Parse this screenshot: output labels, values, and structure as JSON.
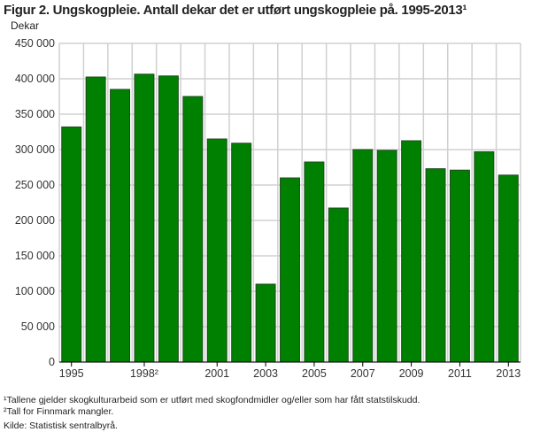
{
  "chart_data": {
    "type": "bar",
    "title": "Figur 2. Ungskogpleie. Antall dekar det er utført ungskogpleie på. 1995-2013¹",
    "ylabel": "Dekar",
    "xlabel": "",
    "categories": [
      "1995",
      "1996",
      "1997",
      "1998",
      "1999",
      "2000",
      "2001",
      "2002",
      "2003",
      "2004",
      "2005",
      "2006",
      "2007",
      "2008",
      "2009",
      "2010",
      "2011",
      "2012",
      "2013"
    ],
    "values": [
      332000,
      402500,
      385000,
      406500,
      404000,
      375000,
      315000,
      309000,
      110000,
      260000,
      282500,
      217500,
      300000,
      299000,
      312500,
      273000,
      271000,
      297000,
      264000
    ],
    "x_tick_labels": [
      {
        "index": 0,
        "label": "1995"
      },
      {
        "index": 3,
        "label": "1998²"
      },
      {
        "index": 6,
        "label": "2001"
      },
      {
        "index": 8,
        "label": "2003"
      },
      {
        "index": 10,
        "label": "2005"
      },
      {
        "index": 12,
        "label": "2007"
      },
      {
        "index": 14,
        "label": "2009"
      },
      {
        "index": 16,
        "label": "2011"
      },
      {
        "index": 18,
        "label": "2013"
      }
    ],
    "y_ticks": [
      0,
      50000,
      100000,
      150000,
      200000,
      250000,
      300000,
      350000,
      400000,
      450000
    ],
    "y_tick_labels": [
      "0",
      "50 000",
      "100 000",
      "150 000",
      "200 000",
      "250 000",
      "300 000",
      "350 000",
      "400 000",
      "450 000"
    ],
    "ylim": [
      0,
      450000
    ],
    "grid": true,
    "bar_color": "#008000"
  },
  "footnotes": [
    "¹Tallene gjelder skogkulturarbeid som er utført med skogfondmidler og/eller som har fått statstilskudd.",
    "²Tall for Finnmark mangler."
  ],
  "source": "Kilde: Statistisk sentralbyrå."
}
